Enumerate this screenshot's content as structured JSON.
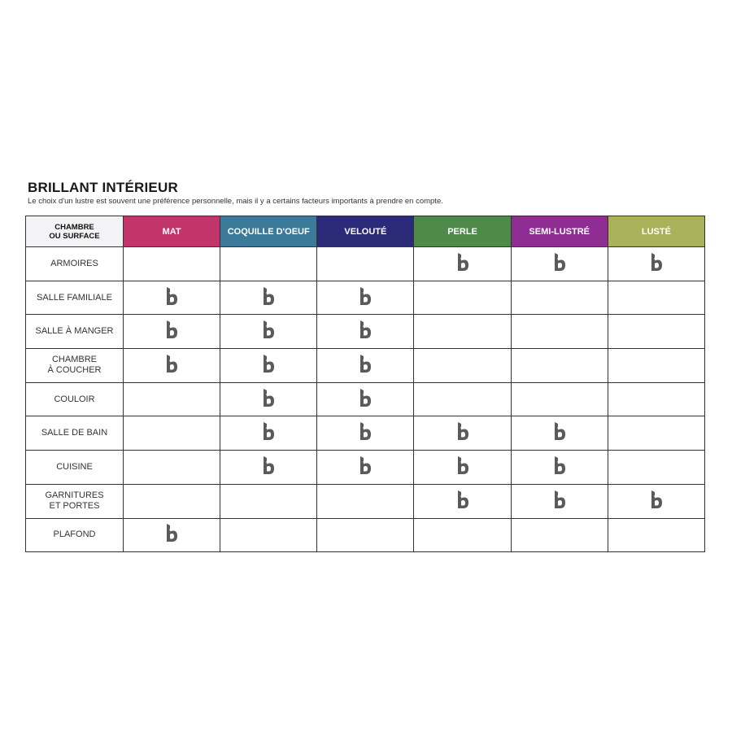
{
  "title": "BRILLANT INTÉRIEUR",
  "subtitle": "Le choix d'un lustre est souvent une préférence personnelle, mais il y a certains facteurs importants à prendre en compte.",
  "table": {
    "corner_header": "CHAMBRE\nOU SURFACE",
    "columns": [
      {
        "label": "MAT",
        "color": "#c2356a"
      },
      {
        "label": "COQUILLE D'OEUF",
        "color": "#3b7b99"
      },
      {
        "label": "VELOUTÉ",
        "color": "#2b2a78"
      },
      {
        "label": "PERLE",
        "color": "#4f8a4b"
      },
      {
        "label": "SEMI-LUSTRÉ",
        "color": "#8f2d93"
      },
      {
        "label": "LUSTÉ",
        "color": "#aab259"
      }
    ],
    "check_icon": "brand-b-icon",
    "rows": [
      {
        "label": "ARMOIRES",
        "checks": [
          false,
          false,
          false,
          true,
          true,
          true
        ]
      },
      {
        "label": "SALLE FAMILIALE",
        "checks": [
          true,
          true,
          true,
          false,
          false,
          false
        ]
      },
      {
        "label": "SALLE À MANGER",
        "checks": [
          true,
          true,
          true,
          false,
          false,
          false
        ]
      },
      {
        "label": "CHAMBRE\nÀ COUCHER",
        "checks": [
          true,
          true,
          true,
          false,
          false,
          false
        ]
      },
      {
        "label": "COULOIR",
        "checks": [
          false,
          true,
          true,
          false,
          false,
          false
        ]
      },
      {
        "label": "SALLE DE BAIN",
        "checks": [
          false,
          true,
          true,
          true,
          true,
          false
        ]
      },
      {
        "label": "CUISINE",
        "checks": [
          false,
          true,
          true,
          true,
          true,
          false
        ]
      },
      {
        "label": "GARNITURES\nET PORTES",
        "checks": [
          false,
          false,
          false,
          true,
          true,
          true
        ]
      },
      {
        "label": "PLAFOND",
        "checks": [
          true,
          false,
          false,
          false,
          false,
          false
        ]
      }
    ]
  }
}
